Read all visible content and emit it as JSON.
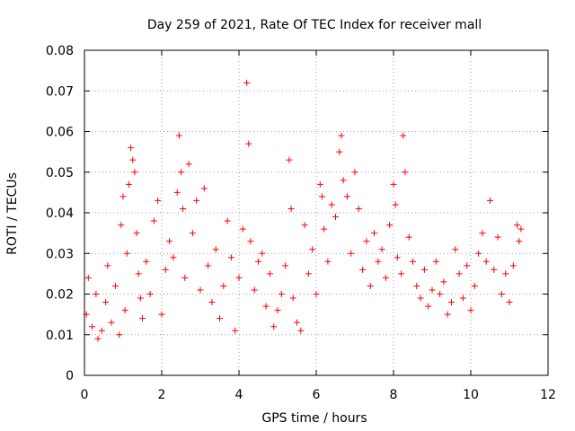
{
  "chart_data": {
    "type": "scatter",
    "title": "Day 259 of 2021, Rate Of TEC Index for receiver mall",
    "xlabel": "GPS time / hours",
    "ylabel": "ROTI / TECUs",
    "xlim": [
      0,
      12
    ],
    "ylim": [
      0,
      0.08
    ],
    "xticks": [
      0,
      2,
      4,
      6,
      8,
      10,
      12
    ],
    "xtick_labels": [
      "0",
      "2",
      "4",
      "6",
      "8",
      "10",
      "12"
    ],
    "yticks": [
      0,
      0.01,
      0.02,
      0.03,
      0.04,
      0.05,
      0.06,
      0.07,
      0.08
    ],
    "ytick_labels": [
      "0",
      "0.01",
      "0.02",
      "0.03",
      "0.04",
      "0.05",
      "0.06",
      "0.07",
      "0.08"
    ],
    "grid": true,
    "marker": "+",
    "color": "#ff0000",
    "series": [
      {
        "name": "ROTI",
        "x": [
          0.05,
          0.1,
          0.2,
          0.3,
          0.35,
          0.45,
          0.55,
          0.6,
          0.7,
          0.8,
          0.9,
          0.95,
          1.0,
          1.05,
          1.1,
          1.15,
          1.2,
          1.25,
          1.3,
          1.35,
          1.4,
          1.45,
          1.5,
          1.6,
          1.7,
          1.8,
          1.9,
          2.0,
          2.1,
          2.2,
          2.3,
          2.4,
          2.45,
          2.5,
          2.55,
          2.6,
          2.7,
          2.8,
          2.9,
          3.0,
          3.1,
          3.2,
          3.3,
          3.4,
          3.5,
          3.6,
          3.7,
          3.8,
          3.9,
          4.0,
          4.1,
          4.2,
          4.25,
          4.3,
          4.4,
          4.5,
          4.6,
          4.7,
          4.8,
          4.9,
          5.0,
          5.1,
          5.2,
          5.3,
          5.35,
          5.4,
          5.5,
          5.6,
          5.7,
          5.8,
          5.9,
          6.0,
          6.1,
          6.15,
          6.2,
          6.3,
          6.4,
          6.5,
          6.6,
          6.65,
          6.7,
          6.8,
          6.9,
          7.0,
          7.1,
          7.2,
          7.3,
          7.4,
          7.5,
          7.6,
          7.7,
          7.8,
          7.9,
          8.0,
          8.05,
          8.1,
          8.2,
          8.25,
          8.3,
          8.4,
          8.5,
          8.6,
          8.7,
          8.8,
          8.9,
          9.0,
          9.1,
          9.2,
          9.3,
          9.4,
          9.5,
          9.6,
          9.7,
          9.8,
          9.9,
          10.0,
          10.1,
          10.2,
          10.3,
          10.4,
          10.5,
          10.6,
          10.7,
          10.8,
          10.9,
          11.0,
          11.1,
          11.2,
          11.25,
          11.3
        ],
        "y": [
          0.015,
          0.024,
          0.012,
          0.02,
          0.009,
          0.011,
          0.018,
          0.027,
          0.013,
          0.022,
          0.01,
          0.037,
          0.044,
          0.016,
          0.03,
          0.047,
          0.056,
          0.053,
          0.05,
          0.035,
          0.025,
          0.019,
          0.014,
          0.028,
          0.02,
          0.038,
          0.043,
          0.015,
          0.026,
          0.033,
          0.029,
          0.045,
          0.059,
          0.05,
          0.041,
          0.024,
          0.052,
          0.035,
          0.043,
          0.021,
          0.046,
          0.027,
          0.018,
          0.031,
          0.014,
          0.022,
          0.038,
          0.029,
          0.011,
          0.024,
          0.036,
          0.072,
          0.057,
          0.033,
          0.021,
          0.028,
          0.03,
          0.017,
          0.025,
          0.012,
          0.016,
          0.02,
          0.027,
          0.053,
          0.041,
          0.019,
          0.013,
          0.011,
          0.037,
          0.025,
          0.031,
          0.02,
          0.047,
          0.044,
          0.036,
          0.028,
          0.042,
          0.039,
          0.055,
          0.059,
          0.048,
          0.044,
          0.03,
          0.05,
          0.041,
          0.026,
          0.033,
          0.022,
          0.035,
          0.028,
          0.031,
          0.024,
          0.037,
          0.047,
          0.042,
          0.029,
          0.025,
          0.059,
          0.05,
          0.034,
          0.028,
          0.022,
          0.019,
          0.026,
          0.017,
          0.021,
          0.028,
          0.02,
          0.023,
          0.015,
          0.018,
          0.031,
          0.025,
          0.019,
          0.027,
          0.016,
          0.022,
          0.03,
          0.035,
          0.028,
          0.043,
          0.026,
          0.034,
          0.02,
          0.025,
          0.018,
          0.027,
          0.037,
          0.033,
          0.036
        ]
      }
    ]
  }
}
